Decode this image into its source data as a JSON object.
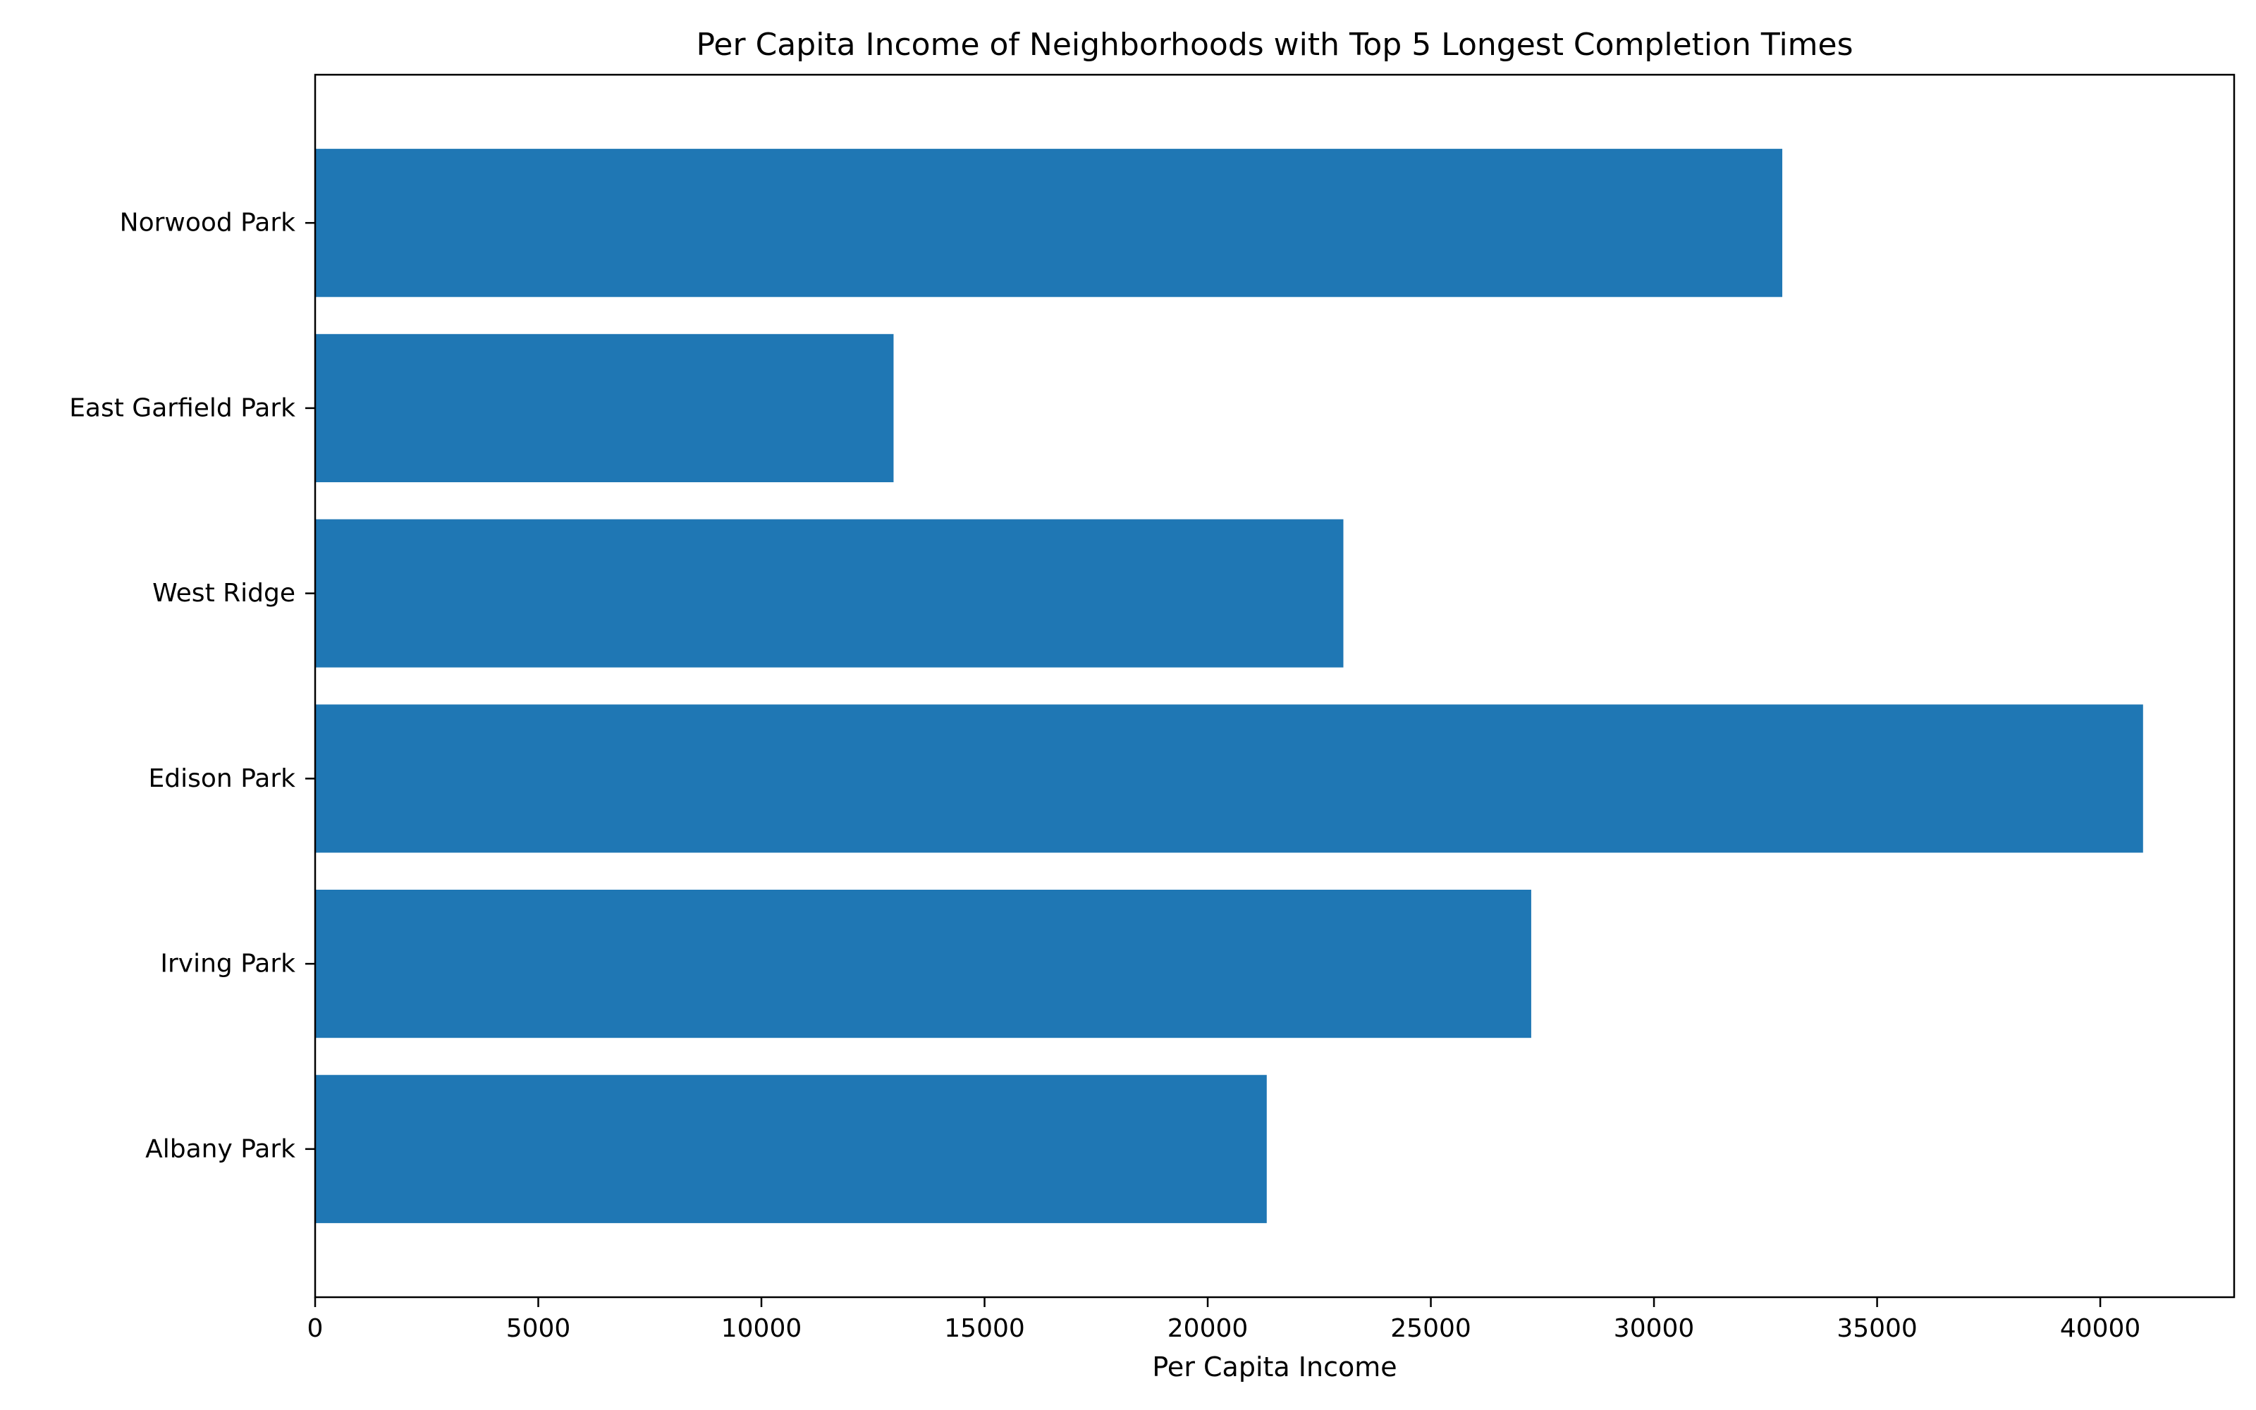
{
  "chart_data": {
    "type": "bar",
    "orientation": "horizontal",
    "title": "Per Capita Income of Neighborhoods with Top 5 Longest Completion Times",
    "xlabel": "Per Capita Income",
    "ylabel": "",
    "categories": [
      "Albany Park",
      "Irving Park",
      "Edison Park",
      "West Ridge",
      "East Garfield Park",
      "Norwood Park"
    ],
    "values": [
      21323,
      27249,
      40959,
      23040,
      12961,
      32875
    ],
    "xlim": [
      0,
      43000
    ],
    "xticks": [
      0,
      5000,
      10000,
      15000,
      20000,
      25000,
      30000,
      35000,
      40000
    ],
    "xtick_labels": [
      "0",
      "5000",
      "10000",
      "15000",
      "20000",
      "25000",
      "30000",
      "35000",
      "40000"
    ],
    "grid": false,
    "bar_color": "#1f77b4"
  }
}
